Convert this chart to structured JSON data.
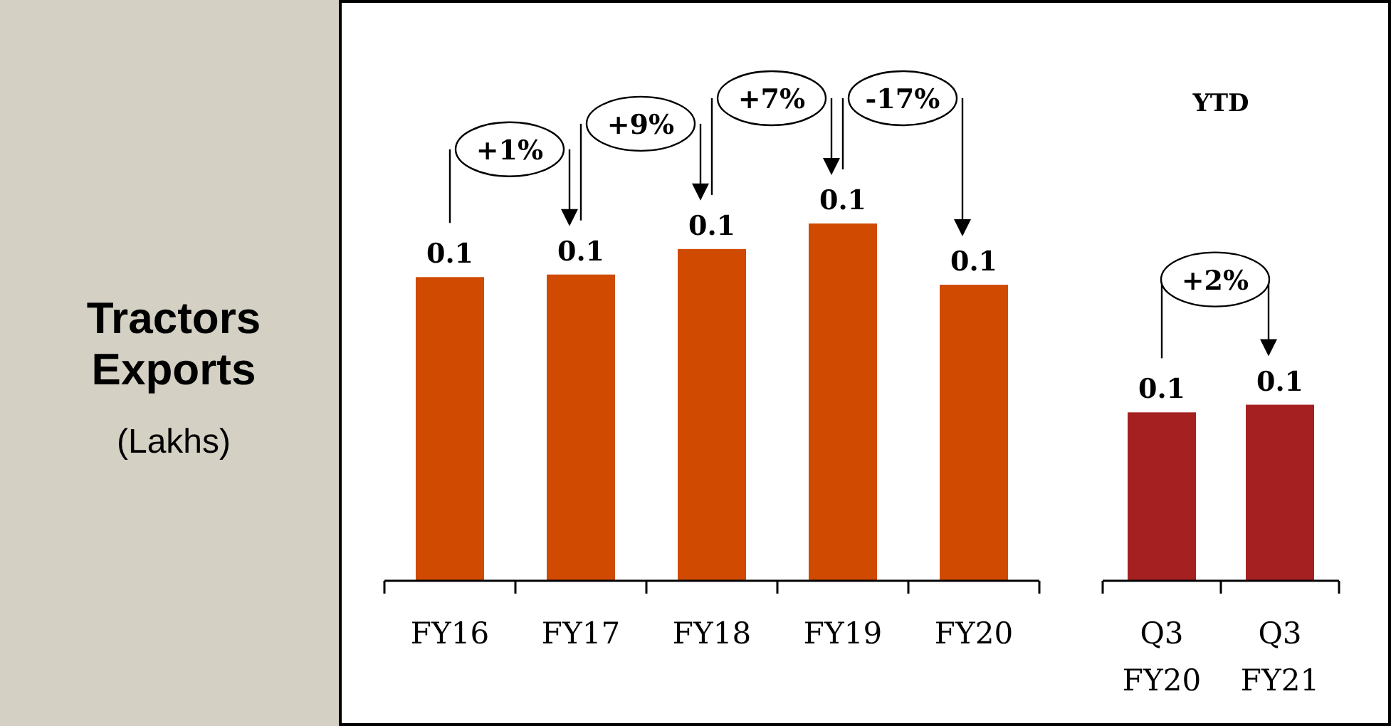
{
  "chart_data": {
    "type": "bar",
    "title": "Tractors Exports",
    "subtitle": "(Lakhs)",
    "categories": [
      "FY16",
      "FY17",
      "FY18",
      "FY19",
      "FY20",
      "Q3 FY20",
      "Q3 FY21"
    ],
    "values": [
      0.119,
      0.12,
      0.13,
      0.14,
      0.116,
      0.066,
      0.069
    ],
    "value_labels": [
      "0.1",
      "0.1",
      "0.1",
      "0.1",
      "0.1",
      "0.1",
      "0.1"
    ],
    "colors": [
      "#d04a02",
      "#d04a02",
      "#d04a02",
      "#d04a02",
      "#d04a02",
      "#a52121",
      "#a52121"
    ],
    "annotations": [
      "+1%",
      "+9%",
      "+7%",
      "-17%",
      "YTD",
      "+2%"
    ]
  }
}
